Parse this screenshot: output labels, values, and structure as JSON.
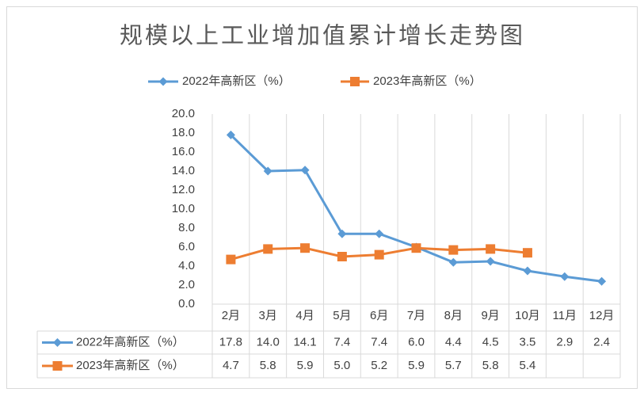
{
  "chart_data": {
    "type": "line",
    "title": "规模以上工业增加值累计增长走势图",
    "categories": [
      "2月",
      "3月",
      "4月",
      "5月",
      "6月",
      "7月",
      "8月",
      "9月",
      "10月",
      "11月",
      "12月"
    ],
    "series": [
      {
        "name": "2022年高新区（%）",
        "color": "#5b9bd5",
        "marker": "diamond",
        "values": [
          17.8,
          14.0,
          14.1,
          7.4,
          7.4,
          6.0,
          4.4,
          4.5,
          3.5,
          2.9,
          2.4
        ],
        "value_labels": [
          "17.8",
          "14.0",
          "14.1",
          "7.4",
          "7.4",
          "6.0",
          "4.4",
          "4.5",
          "3.5",
          "2.9",
          "2.4"
        ]
      },
      {
        "name": "2023年高新区（%）",
        "color": "#ed7d31",
        "marker": "square",
        "values": [
          4.7,
          5.8,
          5.9,
          5.0,
          5.2,
          5.9,
          5.7,
          5.8,
          5.4,
          null,
          null
        ],
        "value_labels": [
          "4.7",
          "5.8",
          "5.9",
          "5.0",
          "5.2",
          "5.9",
          "5.7",
          "5.8",
          "5.4",
          null,
          null
        ]
      }
    ],
    "ylim": [
      0,
      20
    ],
    "yticks": [
      {
        "value": 0,
        "label": "0.0"
      },
      {
        "value": 2,
        "label": "2.0"
      },
      {
        "value": 4,
        "label": "4.0"
      },
      {
        "value": 6,
        "label": "6.0"
      },
      {
        "value": 8,
        "label": "8.0"
      },
      {
        "value": 10,
        "label": "10.0"
      },
      {
        "value": 12,
        "label": "12.0"
      },
      {
        "value": 14,
        "label": "14.0"
      },
      {
        "value": 16,
        "label": "16.0"
      },
      {
        "value": 18,
        "label": "18.0"
      },
      {
        "value": 20,
        "label": "20.0"
      }
    ],
    "legend": "top",
    "data_table": true
  }
}
